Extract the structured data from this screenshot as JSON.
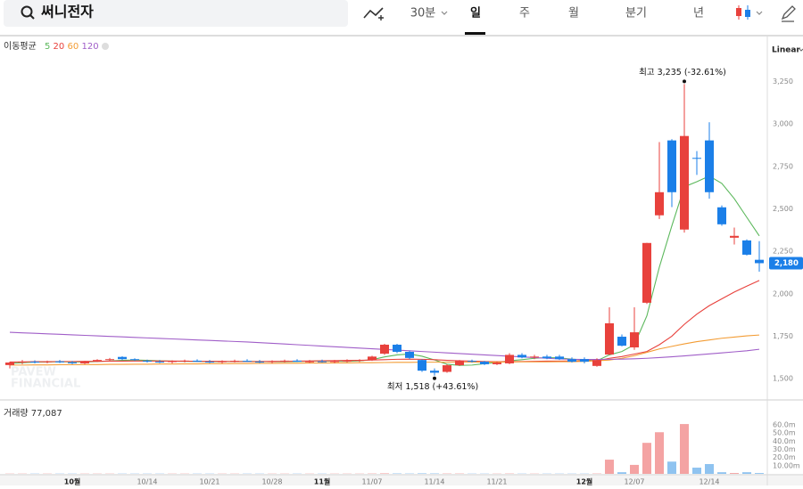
{
  "header": {
    "search": "써니전자",
    "intervals": [
      "30분",
      "일",
      "주",
      "월",
      "분기",
      "년"
    ]
  },
  "chart_data": {
    "type": "candlestick",
    "scale_label": "Linear",
    "legend_title": "이동평균",
    "categories": [
      null,
      null,
      null,
      null,
      null,
      "10월",
      null,
      null,
      null,
      null,
      null,
      "10/14",
      null,
      null,
      null,
      null,
      "10/21",
      null,
      null,
      null,
      null,
      "10/28",
      null,
      null,
      null,
      "11월",
      null,
      null,
      null,
      "11/07",
      null,
      null,
      null,
      null,
      "11/14",
      null,
      null,
      null,
      null,
      "11/21",
      null,
      null,
      null,
      null,
      null,
      null,
      "12월",
      null,
      null,
      null,
      "12/07",
      null,
      null,
      null,
      null,
      null,
      "12/14",
      null,
      null,
      null,
      null
    ],
    "open": [
      1580,
      1595,
      1600,
      1598,
      1602,
      1596,
      1590,
      1602,
      1610,
      1628,
      1615,
      1605,
      1600,
      1598,
      1603,
      1606,
      1600,
      1597,
      1602,
      1605,
      1600,
      1598,
      1603,
      1606,
      1600,
      1602,
      1598,
      1604,
      1606,
      1610,
      1647,
      1700,
      1658,
      1610,
      1547,
      1540,
      1579,
      1605,
      1600,
      1585,
      1590,
      1640,
      1625,
      1630,
      1630,
      1615,
      1615,
      1575,
      1642,
      1747,
      1684,
      1947,
      2462,
      2903,
      2378,
      2800,
      2903,
      2509,
      2330,
      2314,
      2200
    ],
    "high": [
      1600,
      1610,
      1608,
      1606,
      1610,
      1604,
      1605,
      1615,
      1622,
      1632,
      1620,
      1612,
      1610,
      1608,
      1612,
      1614,
      1610,
      1608,
      1612,
      1615,
      1610,
      1608,
      1612,
      1615,
      1610,
      1612,
      1610,
      1614,
      1615,
      1635,
      1705,
      1705,
      1665,
      1615,
      1560,
      1585,
      1610,
      1612,
      1605,
      1600,
      1650,
      1650,
      1640,
      1640,
      1640,
      1625,
      1625,
      1620,
      1920,
      1760,
      1920,
      2300,
      2893,
      2910,
      3235,
      2840,
      3010,
      2520,
      2390,
      2320,
      2310
    ],
    "low": [
      1560,
      1585,
      1590,
      1590,
      1592,
      1585,
      1585,
      1598,
      1600,
      1610,
      1605,
      1595,
      1592,
      1590,
      1595,
      1598,
      1592,
      1590,
      1595,
      1598,
      1592,
      1590,
      1595,
      1598,
      1592,
      1595,
      1590,
      1596,
      1598,
      1605,
      1640,
      1650,
      1615,
      1540,
      1518,
      1535,
      1575,
      1595,
      1580,
      1580,
      1585,
      1620,
      1615,
      1615,
      1610,
      1595,
      1590,
      1570,
      1640,
      1690,
      1670,
      1940,
      2440,
      2510,
      2360,
      2700,
      2560,
      2400,
      2290,
      2225,
      2130
    ],
    "close": [
      1595,
      1600,
      1598,
      1602,
      1596,
      1590,
      1602,
      1610,
      1615,
      1615,
      1610,
      1600,
      1598,
      1603,
      1606,
      1600,
      1597,
      1602,
      1605,
      1600,
      1598,
      1603,
      1606,
      1600,
      1602,
      1598,
      1604,
      1606,
      1610,
      1630,
      1700,
      1658,
      1622,
      1547,
      1535,
      1579,
      1605,
      1600,
      1585,
      1595,
      1640,
      1625,
      1630,
      1620,
      1615,
      1600,
      1600,
      1610,
      1826,
      1694,
      1773,
      2299,
      2598,
      2598,
      2929,
      2798,
      2598,
      2409,
      2341,
      2230,
      2180
    ],
    "up_color": "#e8413c",
    "down_color": "#1b7fe8",
    "moving_averages": [
      {
        "name": "5",
        "color": "#5cb85c",
        "values": [
          1590,
          1594,
          1597,
          1598,
          1600,
          1599,
          1598,
          1601,
          1604,
          1608,
          1610,
          1608,
          1605,
          1603,
          1602,
          1601,
          1600,
          1600,
          1601,
          1602,
          1601,
          1600,
          1600,
          1601,
          1603,
          1604,
          1603,
          1602,
          1605,
          1612,
          1628,
          1640,
          1645,
          1632,
          1610,
          1585,
          1578,
          1580,
          1588,
          1595,
          1605,
          1612,
          1620,
          1624,
          1622,
          1615,
          1610,
          1605,
          1640,
          1660,
          1700,
          1870,
          2157,
          2400,
          2630,
          2660,
          2693,
          2650,
          2560,
          2450,
          2341
        ]
      },
      {
        "name": "20",
        "color": "#e8413c",
        "values": [
          1598,
          1599,
          1600,
          1600,
          1601,
          1601,
          1602,
          1602,
          1603,
          1603,
          1604,
          1604,
          1604,
          1603,
          1603,
          1602,
          1602,
          1602,
          1601,
          1601,
          1601,
          1602,
          1602,
          1603,
          1604,
          1605,
          1606,
          1607,
          1608,
          1610,
          1612,
          1614,
          1615,
          1614,
          1612,
          1608,
          1605,
          1603,
          1601,
          1600,
          1600,
          1601,
          1602,
          1603,
          1603,
          1604,
          1605,
          1605,
          1620,
          1630,
          1645,
          1660,
          1700,
          1750,
          1820,
          1880,
          1930,
          1970,
          2010,
          2045,
          2078
        ]
      },
      {
        "name": "60",
        "color": "#f39c34",
        "values": [
          1580,
          1580,
          1581,
          1581,
          1582,
          1582,
          1583,
          1583,
          1584,
          1584,
          1585,
          1585,
          1586,
          1586,
          1587,
          1587,
          1588,
          1588,
          1589,
          1589,
          1590,
          1590,
          1591,
          1591,
          1592,
          1592,
          1593,
          1593,
          1594,
          1594,
          1595,
          1596,
          1596,
          1597,
          1597,
          1597,
          1597,
          1597,
          1598,
          1598,
          1598,
          1599,
          1599,
          1599,
          1600,
          1600,
          1602,
          1605,
          1610,
          1620,
          1635,
          1655,
          1675,
          1690,
          1705,
          1718,
          1728,
          1738,
          1745,
          1752,
          1757
        ]
      },
      {
        "name": "120",
        "color": "#a05ec8",
        "values": [
          1773,
          1770,
          1767,
          1764,
          1761,
          1758,
          1755,
          1752,
          1749,
          1746,
          1743,
          1740,
          1737,
          1734,
          1731,
          1728,
          1725,
          1722,
          1719,
          1716,
          1712,
          1708,
          1704,
          1700,
          1696,
          1692,
          1688,
          1684,
          1680,
          1676,
          1672,
          1668,
          1664,
          1660,
          1656,
          1652,
          1648,
          1644,
          1640,
          1636,
          1632,
          1628,
          1624,
          1620,
          1616,
          1614,
          1613,
          1613,
          1614,
          1615,
          1617,
          1620,
          1624,
          1629,
          1634,
          1640,
          1646,
          1652,
          1658,
          1664,
          1673
        ]
      }
    ],
    "ylim": [
      1380,
      3520
    ],
    "yticks": [
      {
        "value": 1500,
        "label": "1,500"
      },
      {
        "value": 1750,
        "label": "1,750"
      },
      {
        "value": 2000,
        "label": "2,000"
      },
      {
        "value": 2250,
        "label": "2,250"
      },
      {
        "value": 2500,
        "label": "2,500"
      },
      {
        "value": 2750,
        "label": "2,750"
      },
      {
        "value": 3000,
        "label": "3,000"
      },
      {
        "value": 3250,
        "label": "3,250"
      }
    ],
    "last_price": {
      "value": 2180,
      "label": "2,180"
    },
    "high_label": "최고 3,235 (-32.61%)",
    "low_label": "최저 1,518 (+43.61%)",
    "watermark": [
      "PAVEW",
      "FINANCIAL"
    ],
    "volume_title": "거래량 77,087",
    "volume": [
      0.3,
      0.3,
      0.3,
      0.3,
      0.3,
      0.3,
      0.3,
      0.3,
      0.3,
      0.3,
      0.3,
      0.3,
      0.3,
      0.3,
      0.3,
      0.3,
      0.3,
      0.3,
      0.3,
      0.3,
      0.3,
      0.3,
      0.3,
      0.3,
      0.3,
      0.3,
      0.3,
      0.3,
      0.3,
      0.4,
      0.6,
      0.5,
      0.4,
      0.6,
      0.5,
      0.4,
      0.4,
      0.3,
      0.3,
      0.3,
      0.4,
      0.3,
      0.3,
      0.3,
      0.3,
      0.3,
      0.3,
      0.4,
      17.4,
      2,
      11,
      38,
      51,
      15,
      61,
      7.6,
      12,
      2,
      1,
      2,
      1
    ],
    "vlim": [
      0,
      84
    ],
    "vticks": [
      {
        "value": 10,
        "label": "10.00m"
      },
      {
        "value": 20,
        "label": "20.0m"
      },
      {
        "value": 30,
        "label": "30.0m"
      },
      {
        "value": 40,
        "label": "40.0m"
      },
      {
        "value": 50,
        "label": "50.0m"
      },
      {
        "value": 60,
        "label": "60.0m"
      }
    ]
  }
}
